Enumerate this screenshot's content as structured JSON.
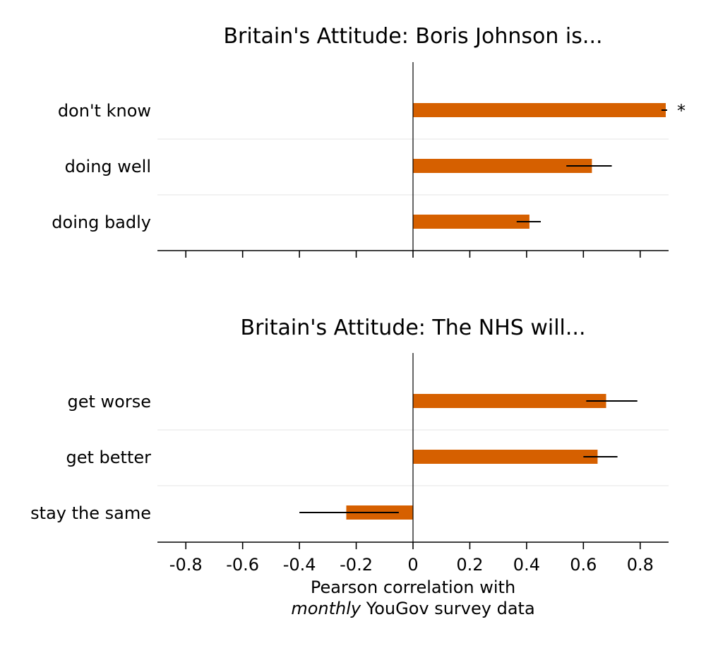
{
  "chart_data": [
    {
      "type": "bar",
      "orientation": "horizontal",
      "title": "Britain's Attitude: Boris Johnson is...",
      "categories": [
        "don't know",
        "doing well",
        "doing badly"
      ],
      "values": [
        0.89,
        0.63,
        0.41
      ],
      "error_low": [
        0.875,
        0.54,
        0.365
      ],
      "error_high": [
        0.895,
        0.7,
        0.45
      ],
      "annotations": [
        "*",
        "",
        ""
      ],
      "xlim": [
        -0.9,
        0.9
      ],
      "xticks": [
        -0.8,
        -0.6,
        -0.4,
        -0.2,
        0,
        0.2,
        0.4,
        0.6,
        0.8
      ],
      "show_tick_labels": false,
      "bar_color": "#d66000"
    },
    {
      "type": "bar",
      "orientation": "horizontal",
      "title": "Britain's Attitude: The NHS will...",
      "categories": [
        "get worse",
        "get better",
        "stay the same"
      ],
      "values": [
        0.68,
        0.65,
        -0.235
      ],
      "error_low": [
        0.61,
        0.6,
        -0.4
      ],
      "error_high": [
        0.79,
        0.72,
        -0.05
      ],
      "annotations": [
        "",
        "",
        ""
      ],
      "xlim": [
        -0.9,
        0.9
      ],
      "xticks": [
        -0.8,
        -0.6,
        -0.4,
        -0.2,
        0,
        0.2,
        0.4,
        0.6,
        0.8
      ],
      "tick_labels": [
        "-0.8",
        "-0.6",
        "-0.4",
        "-0.2",
        "0",
        "0.2",
        "0.4",
        "0.6",
        "0.8"
      ],
      "show_tick_labels": true,
      "xlabel_line1": "Pearson correlation with",
      "xlabel_line2_italic": "monthly",
      "xlabel_line2_rest": " YouGov survey data",
      "bar_color": "#d66000"
    }
  ]
}
